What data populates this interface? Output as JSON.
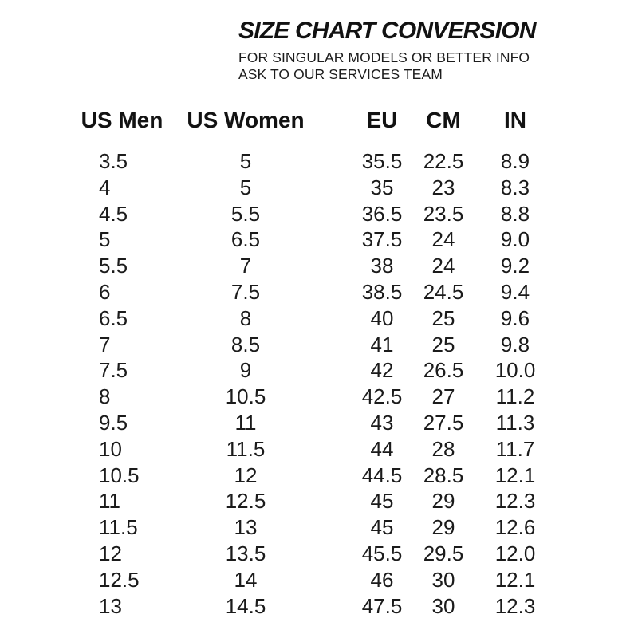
{
  "header": {
    "title": "SIZE CHART CONVERSION",
    "subtitle_line1": "FOR SINGULAR MODELS OR BETTER INFO",
    "subtitle_line2": "ASK TO OUR SERVICES TEAM"
  },
  "colors": {
    "background": "#ffffff",
    "text": "#181818"
  },
  "chart_data": {
    "type": "table",
    "title": "SIZE CHART CONVERSION",
    "columns": [
      "US Men",
      "US Women",
      "EU",
      "CM",
      "IN"
    ],
    "rows": [
      [
        "3.5",
        "5",
        "35.5",
        "22.5",
        "8.9"
      ],
      [
        "4",
        "5",
        "35",
        "23",
        "8.3"
      ],
      [
        "4.5",
        "5.5",
        "36.5",
        "23.5",
        "8.8"
      ],
      [
        "5",
        "6.5",
        "37.5",
        "24",
        "9.0"
      ],
      [
        "5.5",
        "7",
        "38",
        "24",
        "9.2"
      ],
      [
        "6",
        "7.5",
        "38.5",
        "24.5",
        "9.4"
      ],
      [
        "6.5",
        "8",
        "40",
        "25",
        "9.6"
      ],
      [
        "7",
        "8.5",
        "41",
        "25",
        "9.8"
      ],
      [
        "7.5",
        "9",
        "42",
        "26.5",
        "10.0"
      ],
      [
        "8",
        "10.5",
        "42.5",
        "27",
        "11.2"
      ],
      [
        "9.5",
        "11",
        "43",
        "27.5",
        "11.3"
      ],
      [
        "10",
        "11.5",
        "44",
        "28",
        "11.7"
      ],
      [
        "10.5",
        "12",
        "44.5",
        "28.5",
        "12.1"
      ],
      [
        "11",
        "12.5",
        "45",
        "29",
        "12.3"
      ],
      [
        "11.5",
        "13",
        "45",
        "29",
        "12.6"
      ],
      [
        "12",
        "13.5",
        "45.5",
        "29.5",
        "12.0"
      ],
      [
        "12.5",
        "14",
        "46",
        "30",
        "12.1"
      ],
      [
        "13",
        "14.5",
        "47.5",
        "30",
        "12.3"
      ]
    ]
  }
}
